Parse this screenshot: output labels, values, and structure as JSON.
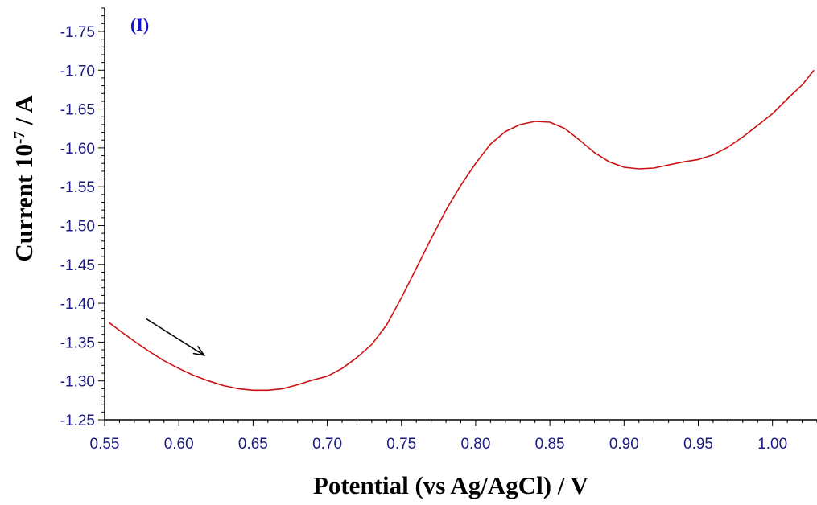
{
  "chart_data": {
    "type": "line",
    "panel_label": "(I)",
    "xlabel": "Potential (vs Ag/AgCl) / V",
    "ylabel": {
      "prefix": "Current   10",
      "exponent": "-7",
      "suffix": " / A"
    },
    "xlim": [
      0.55,
      1.03
    ],
    "ylim": [
      -1.25,
      -1.78
    ],
    "x_ticks": [
      "0.55",
      "0.60",
      "0.65",
      "0.70",
      "0.75",
      "0.80",
      "0.85",
      "0.90",
      "0.95",
      "1.00"
    ],
    "y_ticks": [
      "-1.25",
      "-1.30",
      "-1.35",
      "-1.40",
      "-1.45",
      "-1.50",
      "-1.55",
      "-1.60",
      "-1.65",
      "-1.70",
      "-1.75"
    ],
    "grid": false,
    "series": [
      {
        "color": "#cc1111",
        "x": [
          0.553,
          0.56,
          0.57,
          0.58,
          0.59,
          0.6,
          0.61,
          0.62,
          0.63,
          0.64,
          0.65,
          0.66,
          0.67,
          0.68,
          0.69,
          0.7,
          0.71,
          0.72,
          0.73,
          0.74,
          0.75,
          0.76,
          0.77,
          0.78,
          0.79,
          0.8,
          0.81,
          0.82,
          0.83,
          0.84,
          0.85,
          0.86,
          0.87,
          0.88,
          0.89,
          0.9,
          0.91,
          0.92,
          0.93,
          0.94,
          0.95,
          0.96,
          0.97,
          0.98,
          0.99,
          1.0,
          1.01,
          1.02,
          1.028
        ],
        "y": [
          -1.375,
          -1.365,
          -1.351,
          -1.338,
          -1.326,
          -1.316,
          -1.307,
          -1.3,
          -1.294,
          -1.29,
          -1.288,
          -1.288,
          -1.29,
          -1.295,
          -1.301,
          -1.306,
          -1.316,
          -1.33,
          -1.347,
          -1.372,
          -1.407,
          -1.445,
          -1.483,
          -1.52,
          -1.552,
          -1.58,
          -1.605,
          -1.621,
          -1.63,
          -1.634,
          -1.633,
          -1.625,
          -1.61,
          -1.594,
          -1.582,
          -1.575,
          -1.573,
          -1.574,
          -1.578,
          -1.582,
          -1.585,
          -1.591,
          -1.601,
          -1.614,
          -1.629,
          -1.644,
          -1.663,
          -1.681,
          -1.7
        ]
      }
    ],
    "annotation": {
      "type": "arrow",
      "from": [
        0.578,
        -1.38
      ],
      "to": [
        0.617,
        -1.333
      ],
      "color": "#000000"
    }
  }
}
